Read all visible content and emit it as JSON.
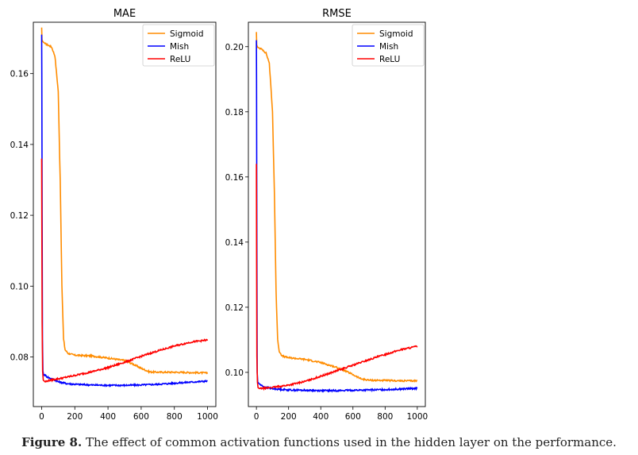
{
  "figure": {
    "caption_label": "Figure 8.",
    "caption_text": " The effect of common activation functions used in the hidden layer on the performance."
  },
  "colors": {
    "Sigmoid": "#ff8c00",
    "Mish": "#0000ff",
    "ReLU": "#ff0000"
  },
  "chart_data": [
    {
      "type": "line",
      "title": "MAE",
      "xlabel": "",
      "ylabel": "",
      "xlim": [
        -50,
        1050
      ],
      "ylim": [
        0.066,
        0.1745
      ],
      "xticks": [
        0,
        200,
        400,
        600,
        800,
        1000
      ],
      "xtick_labels": [
        "0",
        "200",
        "400",
        "600",
        "800",
        "1000"
      ],
      "yticks": [
        0.08,
        0.1,
        0.12,
        0.14,
        0.16
      ],
      "ytick_labels": [
        "0.08",
        "0.10",
        "0.12",
        "0.14",
        "0.16"
      ],
      "legend_position": "top-right",
      "series": [
        {
          "name": "Sigmoid",
          "x": [
            0,
            2,
            8,
            20,
            40,
            60,
            80,
            100,
            112,
            122,
            132,
            142,
            160,
            200,
            300,
            400,
            500,
            550,
            600,
            650,
            700,
            800,
            900,
            1000
          ],
          "y": [
            0.173,
            0.1695,
            0.169,
            0.1685,
            0.168,
            0.1675,
            0.165,
            0.155,
            0.13,
            0.1,
            0.085,
            0.082,
            0.081,
            0.0805,
            0.0803,
            0.0797,
            0.079,
            0.078,
            0.0768,
            0.0758,
            0.0757,
            0.0757,
            0.0756,
            0.0755
          ]
        },
        {
          "name": "Mish",
          "x": [
            0,
            1,
            3,
            5,
            8,
            12,
            18,
            30,
            50,
            80,
            100,
            150,
            200,
            300,
            400,
            500,
            600,
            700,
            800,
            900,
            1000
          ],
          "y": [
            0.171,
            0.16,
            0.12,
            0.085,
            0.076,
            0.0748,
            0.075,
            0.0745,
            0.074,
            0.0735,
            0.073,
            0.0725,
            0.0723,
            0.0721,
            0.072,
            0.072,
            0.0721,
            0.0723,
            0.0726,
            0.0729,
            0.0732
          ]
        },
        {
          "name": "ReLU",
          "x": [
            0,
            1,
            3,
            6,
            10,
            20,
            40,
            80,
            120,
            200,
            300,
            400,
            500,
            600,
            700,
            800,
            900,
            1000
          ],
          "y": [
            0.136,
            0.12,
            0.09,
            0.076,
            0.0735,
            0.073,
            0.0733,
            0.0737,
            0.074,
            0.0748,
            0.0758,
            0.077,
            0.0785,
            0.0802,
            0.0817,
            0.0831,
            0.0842,
            0.0848
          ]
        }
      ]
    },
    {
      "type": "line",
      "title": "RMSE",
      "xlabel": "",
      "ylabel": "",
      "xlim": [
        -50,
        1050
      ],
      "ylim": [
        0.0895,
        0.2075
      ],
      "xticks": [
        0,
        200,
        400,
        600,
        800,
        1000
      ],
      "xtick_labels": [
        "0",
        "200",
        "400",
        "600",
        "800",
        "1000"
      ],
      "yticks": [
        0.1,
        0.12,
        0.14,
        0.16,
        0.18,
        0.2
      ],
      "ytick_labels": [
        "0.10",
        "0.12",
        "0.14",
        "0.16",
        "0.18",
        "0.20"
      ],
      "legend_position": "top-right",
      "series": [
        {
          "name": "Sigmoid",
          "x": [
            0,
            2,
            8,
            20,
            40,
            60,
            80,
            100,
            112,
            122,
            132,
            142,
            160,
            200,
            300,
            400,
            500,
            550,
            600,
            650,
            700,
            800,
            900,
            1000
          ],
          "y": [
            0.2045,
            0.2005,
            0.1998,
            0.1995,
            0.199,
            0.198,
            0.195,
            0.18,
            0.155,
            0.125,
            0.11,
            0.1065,
            0.105,
            0.1045,
            0.104,
            0.103,
            0.1015,
            0.1005,
            0.0993,
            0.098,
            0.0976,
            0.0975,
            0.0974,
            0.0974
          ]
        },
        {
          "name": "Mish",
          "x": [
            0,
            1,
            3,
            5,
            8,
            12,
            18,
            30,
            50,
            80,
            100,
            150,
            200,
            300,
            400,
            500,
            600,
            700,
            800,
            900,
            1000
          ],
          "y": [
            0.202,
            0.19,
            0.14,
            0.1,
            0.097,
            0.0968,
            0.0965,
            0.096,
            0.0955,
            0.0952,
            0.095,
            0.0948,
            0.0946,
            0.0945,
            0.0944,
            0.0944,
            0.0945,
            0.0946,
            0.0947,
            0.0949,
            0.0951
          ]
        },
        {
          "name": "ReLU",
          "x": [
            0,
            1,
            3,
            6,
            10,
            20,
            40,
            80,
            120,
            200,
            300,
            400,
            500,
            600,
            700,
            800,
            900,
            1000
          ],
          "y": [
            0.164,
            0.14,
            0.105,
            0.097,
            0.0953,
            0.095,
            0.0951,
            0.0953,
            0.0955,
            0.0961,
            0.0972,
            0.0988,
            0.1005,
            0.1022,
            0.1039,
            0.1055,
            0.107,
            0.108
          ]
        }
      ]
    }
  ]
}
